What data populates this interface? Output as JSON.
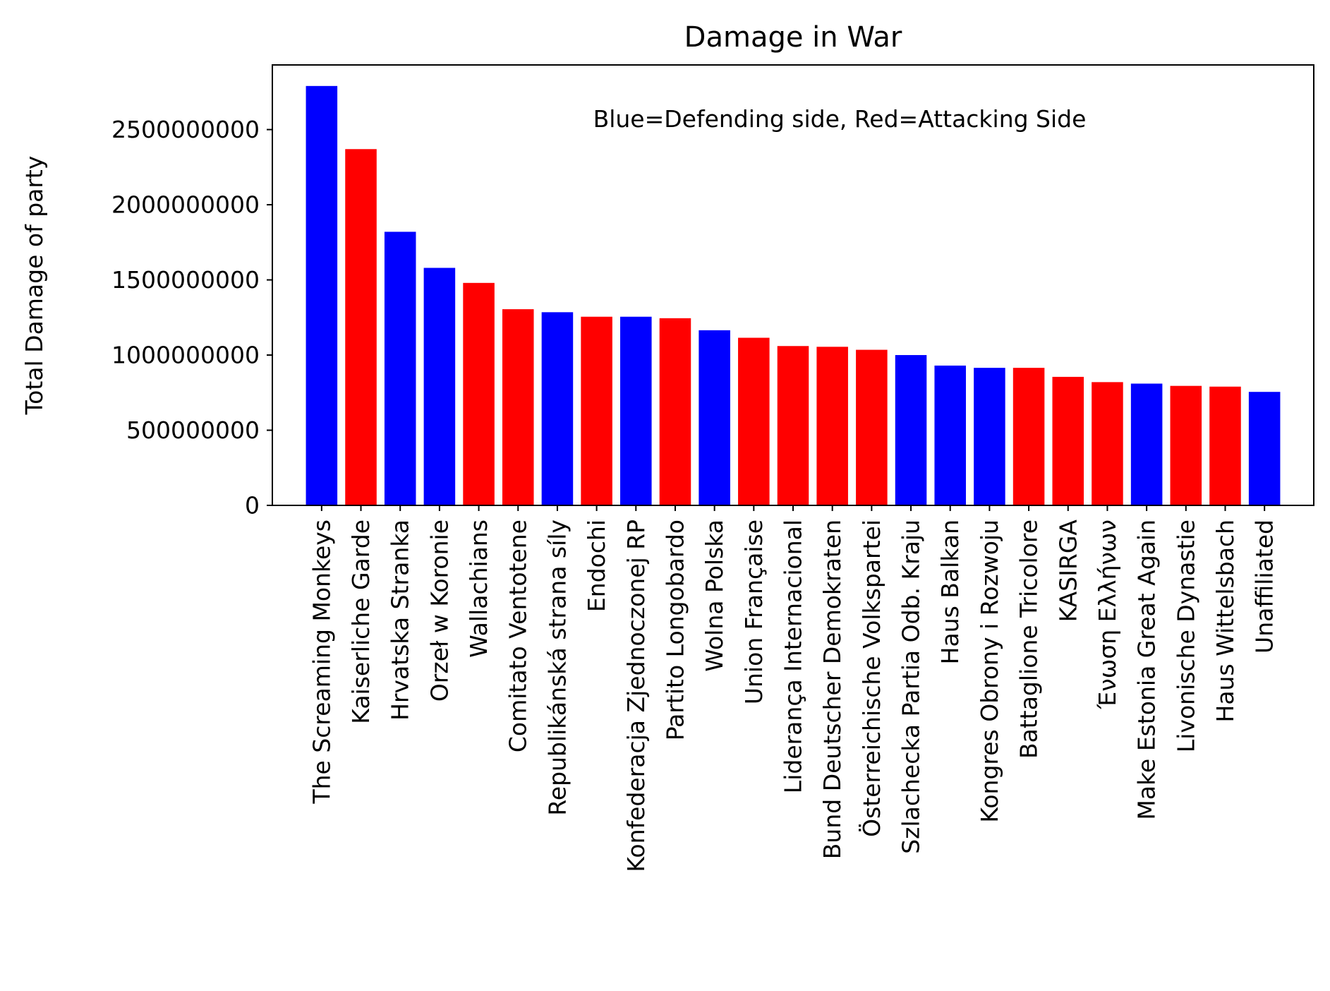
{
  "chart_data": {
    "type": "bar",
    "title": "Damage in War",
    "xlabel": "",
    "ylabel": "Total Damage of party",
    "annotation": "Blue=Defending side, Red=Attacking Side",
    "ylim": [
      0,
      2930000000
    ],
    "yticks": [
      0,
      500000000,
      1000000000,
      1500000000,
      2000000000,
      2500000000
    ],
    "ytick_labels": [
      "0",
      "500000000",
      "1000000000",
      "1500000000",
      "2000000000",
      "2500000000"
    ],
    "grid": false,
    "legend": "none",
    "colors": {
      "defending": "#0000ff",
      "attacking": "#ff0000"
    },
    "categories": [
      "The Screaming Monkeys",
      "Kaiserliche Garde",
      "Hrvatska Stranka",
      "Orzeł w Koronie",
      "Wallachians",
      "Comitato Ventotene",
      "Republikánská strana síly",
      "Endochi",
      "Konfederacja Zjednoczonej RP",
      "Partito Longobardo",
      "Wolna Polska",
      "Union Française",
      "Liderança Internacional",
      "Bund Deutscher Demokraten",
      "Österreichische Volkspartei",
      "Szlachecka Partia Odb. Kraju",
      "Haus Balkan",
      "Kongres Obrony i Rozwoju",
      "Battaglione Tricolore",
      "KASIRGA",
      "Ένωση Ελλήνων",
      "Make Estonia Great Again",
      "Livonische Dynastie",
      "Haus Wittelsbach",
      "Unaffiliated"
    ],
    "values": [
      2790000000,
      2370000000,
      1820000000,
      1580000000,
      1480000000,
      1305000000,
      1285000000,
      1255000000,
      1255000000,
      1245000000,
      1165000000,
      1115000000,
      1060000000,
      1055000000,
      1035000000,
      1000000000,
      930000000,
      915000000,
      915000000,
      855000000,
      820000000,
      810000000,
      795000000,
      790000000,
      755000000
    ],
    "sides": [
      "defending",
      "attacking",
      "defending",
      "defending",
      "attacking",
      "attacking",
      "defending",
      "attacking",
      "defending",
      "attacking",
      "defending",
      "attacking",
      "attacking",
      "attacking",
      "attacking",
      "defending",
      "defending",
      "defending",
      "attacking",
      "attacking",
      "attacking",
      "defending",
      "attacking",
      "attacking",
      "defending"
    ]
  }
}
